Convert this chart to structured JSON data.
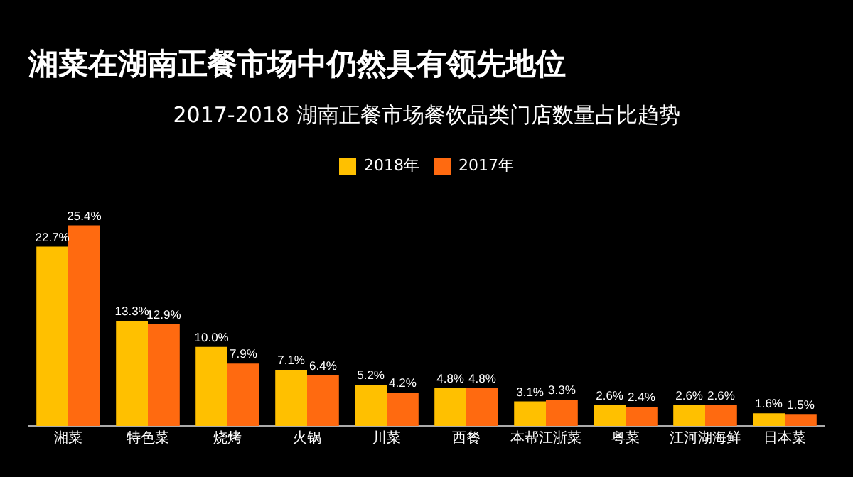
{
  "chart_data": {
    "type": "bar",
    "title": "湘菜在湖南正餐市场中仍然具有领先地位",
    "subtitle": "2017-2018 湖南正餐市场餐饮品类门店数量占比趋势",
    "categories": [
      "湘菜",
      "特色菜",
      "烧烤",
      "火锅",
      "川菜",
      "西餐",
      "本帮江浙菜",
      "粤菜",
      "江河湖海鲜",
      "日本菜"
    ],
    "series": [
      {
        "name": "2018年",
        "color": "#ffc000",
        "values": [
          22.7,
          13.3,
          10.0,
          7.1,
          5.2,
          4.8,
          3.1,
          2.6,
          2.6,
          1.6
        ],
        "value_labels": [
          "22.7%",
          "13.3%",
          "10.0%",
          "7.1%",
          "5.2%",
          "4.8%",
          "3.1%",
          "2.6%",
          "2.6%",
          "1.6%"
        ]
      },
      {
        "name": "2017年",
        "color": "#ff6a10",
        "values": [
          25.4,
          12.9,
          7.9,
          6.4,
          4.2,
          4.8,
          3.3,
          2.4,
          2.6,
          1.5
        ],
        "value_labels": [
          "25.4%",
          "12.9%",
          "7.9%",
          "6.4%",
          "4.2%",
          "4.8%",
          "3.3%",
          "2.4%",
          "2.6%",
          "1.5%"
        ]
      }
    ],
    "legend": "top"
  }
}
